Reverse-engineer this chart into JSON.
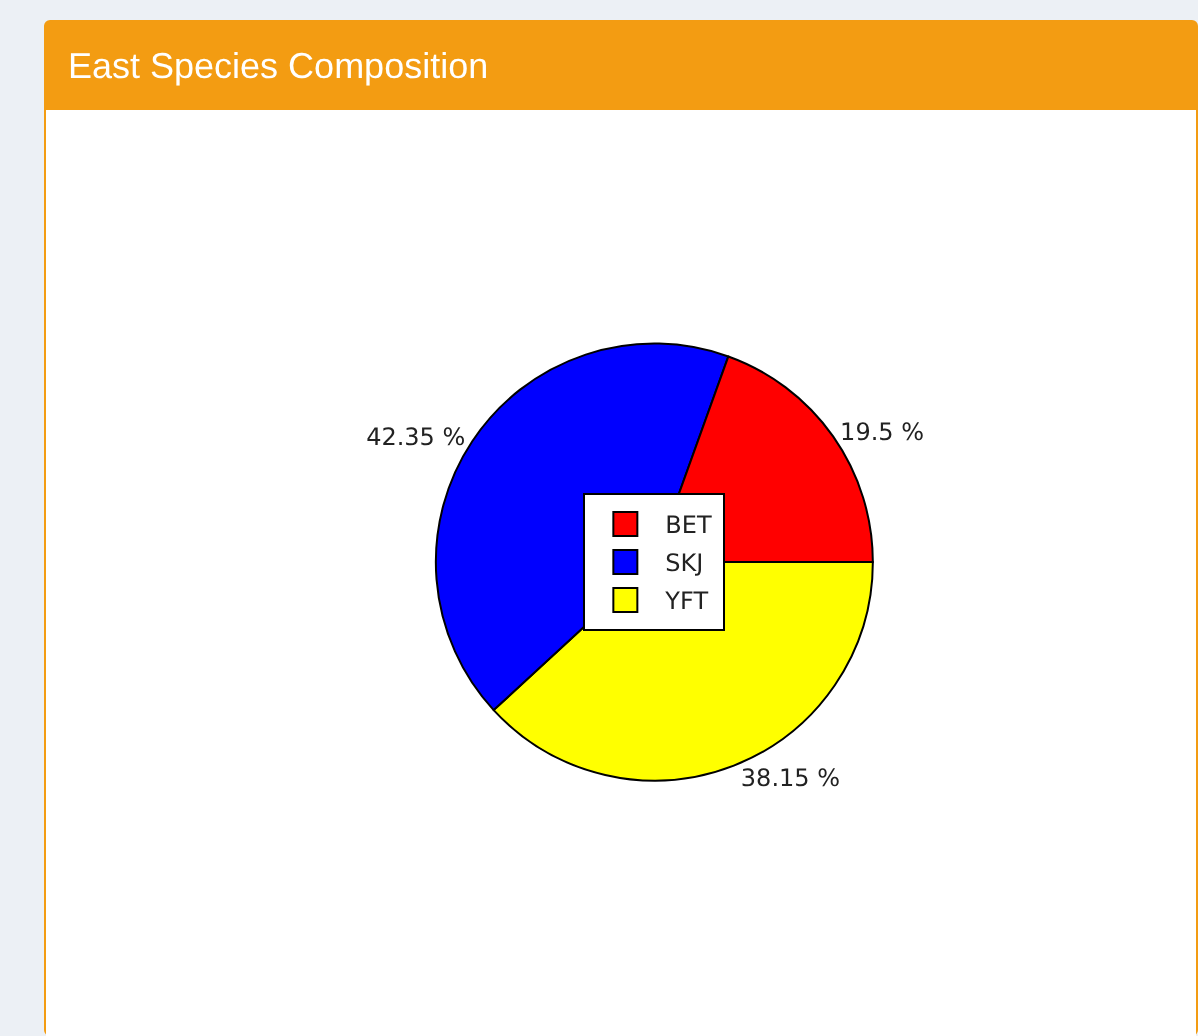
{
  "chart_data": {
    "type": "pie",
    "title": "East Species Composition",
    "categories": [
      "BET",
      "SKJ",
      "YFT"
    ],
    "values": [
      19.5,
      42.35,
      38.15
    ],
    "colors": [
      "#ff0000",
      "#0000ff",
      "#ffff00"
    ],
    "value_labels": [
      "19.5 %",
      "42.35 %",
      "38.15 %"
    ],
    "legend": "center"
  }
}
